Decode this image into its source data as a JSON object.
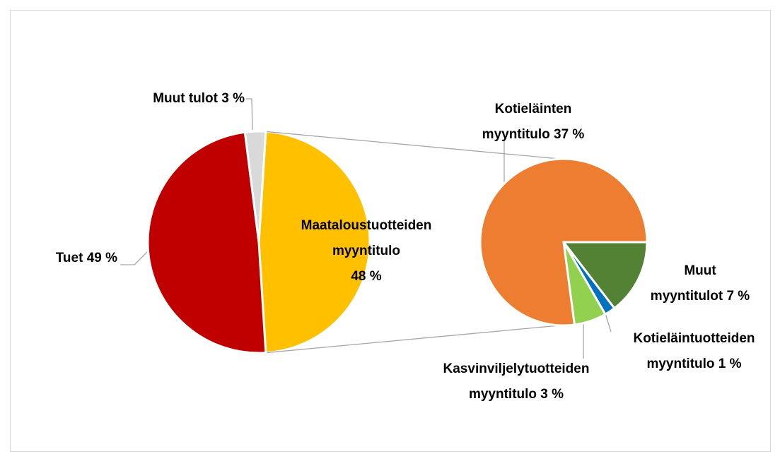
{
  "chart_data": {
    "type": "pie_of_pie",
    "slices": [
      {
        "value": 48,
        "label": "Maataloustuotteiden\nmyyntitulo\n48 %",
        "color": "#ffc000",
        "breakdown": [
          {
            "value": 7,
            "label": "Muut\nmyyntitulot 7 %",
            "color": "#548235"
          },
          {
            "value": 1,
            "label": "Kotieläintuotteiden\nmyyntitulo 1 %",
            "color": "#0070c0"
          },
          {
            "value": 3,
            "label": "Kasvinviljelytuotteiden\nmyyntitulo 3 %",
            "color": "#92d050"
          },
          {
            "value": 37,
            "label": "Kotieläinten\nmyyntitulo 37 %",
            "color": "#ed7d31"
          }
        ]
      },
      {
        "value": 49,
        "label": "Tuet 49 %",
        "color": "#c00000"
      },
      {
        "value": 3,
        "label": "Muut tulot 3 %",
        "color": "#d9d9d9"
      }
    ]
  }
}
